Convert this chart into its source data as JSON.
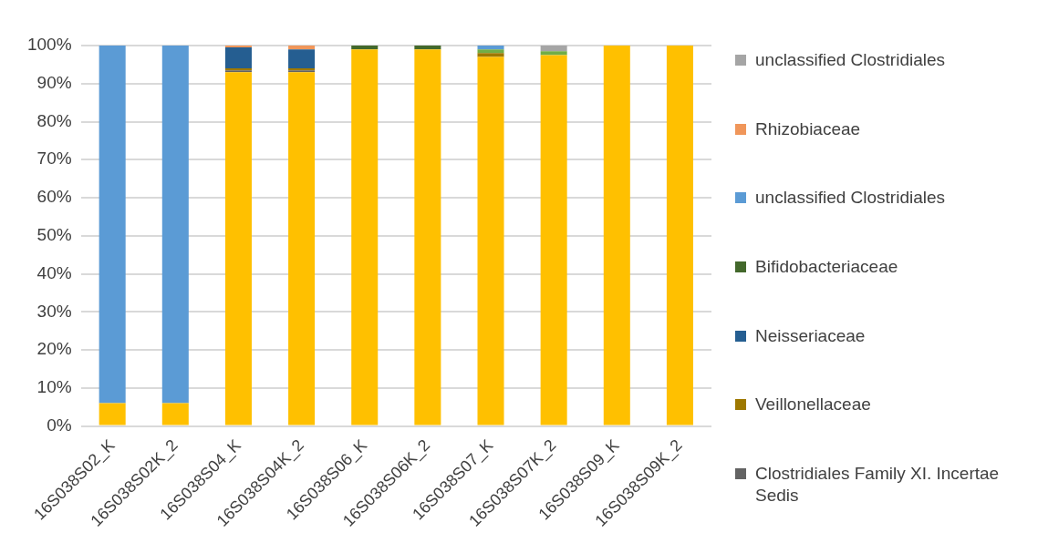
{
  "chart_data": {
    "type": "bar",
    "stacked": true,
    "legend": "right",
    "grid": "y",
    "categories": [
      "16S038S02_K",
      "16S038S02K_2",
      "16S038S04_K",
      "16S038S04K_2",
      "16S038S06_K",
      "16S038S06K_2",
      "16S038S07_K",
      "16S038S07K_2",
      "16S038S09_K",
      "16S038S09K_2"
    ],
    "ylim": [
      0,
      100
    ],
    "yticks": [
      {
        "value": 0,
        "label": "0%"
      },
      {
        "value": 10,
        "label": "10%"
      },
      {
        "value": 20,
        "label": "20%"
      },
      {
        "value": 30,
        "label": "30%"
      },
      {
        "value": 40,
        "label": "40%"
      },
      {
        "value": 50,
        "label": "50%"
      },
      {
        "value": 60,
        "label": "60%"
      },
      {
        "value": 70,
        "label": "70%"
      },
      {
        "value": 80,
        "label": "80%"
      },
      {
        "value": 90,
        "label": "90%"
      },
      {
        "value": 100,
        "label": "100%"
      }
    ],
    "series": [
      {
        "color": "#ffc000",
        "values": [
          6,
          6,
          93,
          93,
          99,
          99,
          97,
          97.5,
          100,
          100
        ]
      },
      {
        "name": "Clostridiales Family XI. Incertae Sedis",
        "color": "#636363",
        "values": [
          0,
          0,
          0.5,
          0.5,
          0,
          0,
          0,
          0,
          0,
          0
        ]
      },
      {
        "name": "Veillonellaceae",
        "color": "#9e7800",
        "values": [
          0,
          0,
          0.5,
          0.5,
          0,
          0,
          1,
          0,
          0,
          0
        ]
      },
      {
        "name": "Neisseriaceae",
        "color": "#255e91",
        "values": [
          0,
          0,
          5.5,
          5,
          0,
          0,
          0,
          0,
          0,
          0
        ]
      },
      {
        "name": "Bifidobacteriaceae",
        "color": "#43682b",
        "values": [
          0,
          0,
          0,
          0,
          1,
          1,
          0,
          0,
          0,
          0
        ]
      },
      {
        "color": "#70ad47",
        "values": [
          0,
          0,
          0,
          0,
          0,
          0,
          1,
          1,
          0,
          0
        ]
      },
      {
        "name": "unclassified Clostridiales",
        "color": "#5b9bd5",
        "values": [
          94,
          94,
          0,
          0,
          0,
          0,
          1,
          0,
          0,
          0
        ]
      },
      {
        "name": "Rhizobiaceae",
        "color": "#f0965a",
        "values": [
          0,
          0,
          0.5,
          1,
          0,
          0,
          0,
          0,
          0,
          0
        ]
      },
      {
        "name": "unclassified Clostridiales",
        "color": "#a5a5a5",
        "values": [
          0,
          0,
          0,
          0,
          0,
          0,
          0,
          1.5,
          0,
          0
        ]
      }
    ]
  }
}
